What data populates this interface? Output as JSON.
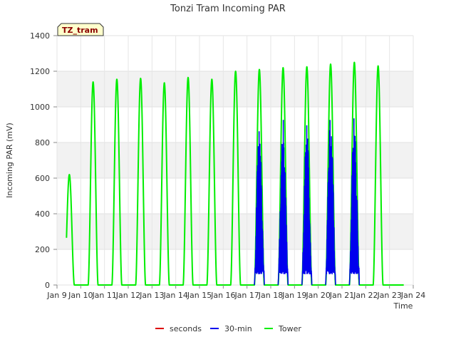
{
  "chart_data": {
    "type": "line",
    "title": "Tonzi Tram Incoming PAR",
    "xlabel": "Time",
    "ylabel": "Incoming PAR (mV)",
    "ylim": [
      0,
      1400
    ],
    "xlim": [
      9,
      24
    ],
    "yticks": [
      0,
      200,
      400,
      600,
      800,
      1000,
      1200,
      1400
    ],
    "xtick_labels": [
      "Jan 9",
      "Jan 10",
      "Jan 11",
      "Jan 12",
      "Jan 13",
      "Jan 14",
      "Jan 15",
      "Jan 16",
      "Jan 17",
      "Jan 18",
      "Jan 19",
      "Jan 20",
      "Jan 21",
      "Jan 22",
      "Jan 23",
      "Jan 24"
    ],
    "grid": true,
    "site_tag": "TZ_tram",
    "legend_position": "bottom-center",
    "series": [
      {
        "name": "seconds",
        "color": "#dd0000",
        "values": []
      },
      {
        "name": "30-min",
        "color": "#0000ee",
        "days": [
          17,
          18,
          19,
          20,
          21
        ],
        "daily_peaks": [
          910,
          940,
          900,
          970,
          960
        ]
      },
      {
        "name": "Tower",
        "color": "#00ee00",
        "days": [
          9,
          10,
          11,
          12,
          13,
          14,
          15,
          16,
          17,
          18,
          19,
          20,
          21,
          22,
          23
        ],
        "daily_peaks": [
          620,
          1140,
          1155,
          1160,
          1135,
          1165,
          1155,
          1200,
          1210,
          1220,
          1225,
          1240,
          1250,
          1230,
          0
        ]
      }
    ]
  }
}
